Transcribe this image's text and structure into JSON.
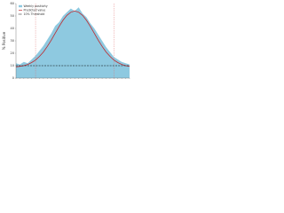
{
  "chart_data": {
    "type": "area",
    "y_label": "% Positive",
    "categories": [
      null,
      null,
      null,
      null,
      null,
      null,
      null,
      null,
      null,
      null,
      null,
      null,
      null,
      null,
      null,
      null,
      null,
      null,
      null,
      null,
      null,
      null,
      null,
      null,
      null,
      null,
      null,
      null,
      null,
      null
    ],
    "series": [
      {
        "name": "Weekly positivity",
        "type": "area",
        "color": "#8ec9e0",
        "values": [
          12,
          11,
          13,
          12,
          15,
          18,
          22,
          26,
          31,
          36,
          42,
          45,
          50,
          53,
          56,
          54,
          57,
          52,
          49,
          44,
          40,
          35,
          30,
          25,
          21,
          17,
          15,
          13,
          12,
          11
        ]
      },
      {
        "name": "Predicted value",
        "type": "line",
        "color": "#c0282c",
        "values": [
          9,
          9.5,
          10,
          11,
          12.5,
          14.5,
          17.5,
          21,
          25.5,
          30.5,
          36,
          41.5,
          46.5,
          50.5,
          53,
          54,
          53,
          50.5,
          46.5,
          41.5,
          36,
          30.5,
          25.5,
          21,
          17.5,
          14.5,
          12.5,
          11,
          10,
          9.5
        ]
      },
      {
        "name": "10% Threshold",
        "type": "threshold",
        "color": "#000000",
        "value": 10
      }
    ],
    "season_markers": [
      5,
      25
    ],
    "marker_color": "#e07070",
    "ylim": [
      0,
      60
    ],
    "yticks": [
      0,
      10,
      20,
      30,
      40,
      50,
      60
    ]
  }
}
